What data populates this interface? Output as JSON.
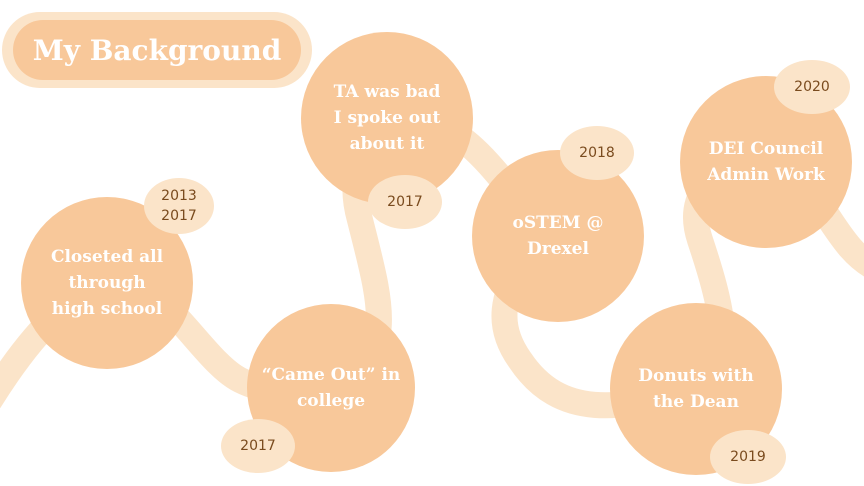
{
  "title": "My Background",
  "colors": {
    "circle": "#f8c89a",
    "badge": "#fbe4c9",
    "path": "#fbe4c9",
    "label_text": "#ffffff",
    "year_text": "#7a4b1e"
  },
  "milestones": [
    {
      "label": "Closeted all\nthrough\nhigh school",
      "year": "2013\n2017"
    },
    {
      "label": "“Came Out” in\ncollege",
      "year": "2017"
    },
    {
      "label": "TA was bad\nI spoke out\nabout it",
      "year": "2017"
    },
    {
      "label": "oSTEM @\nDrexel",
      "year": "2018"
    },
    {
      "label": "Donuts with\nthe Dean",
      "year": "2019"
    },
    {
      "label": "DEI Council\nAdmin Work",
      "year": "2020"
    }
  ]
}
